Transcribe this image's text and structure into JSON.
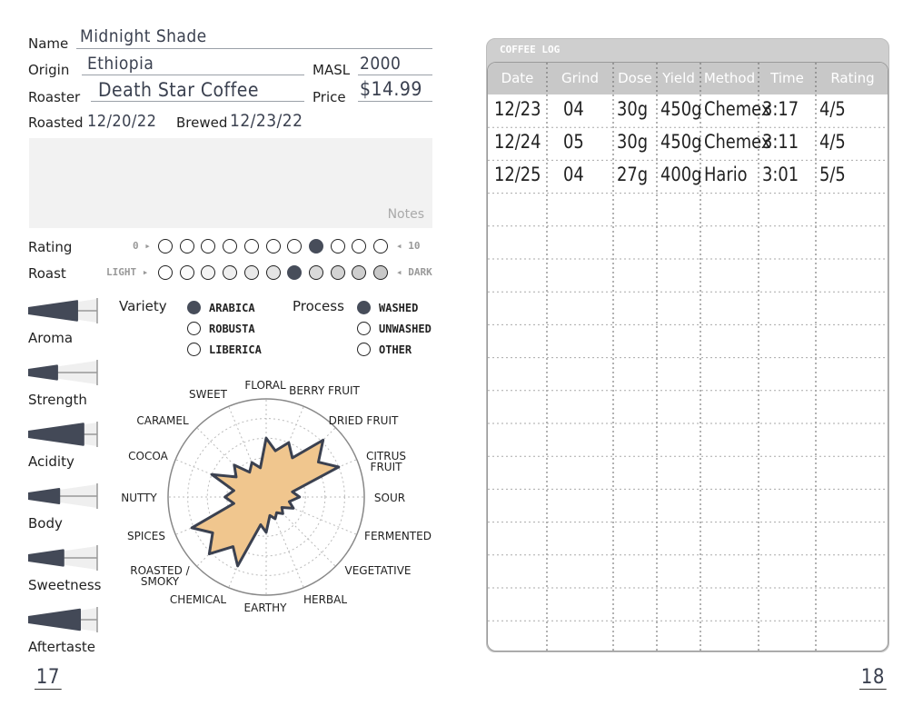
{
  "left_page": {
    "fields": {
      "name_label": "Name",
      "name_value": "Midnight Shade",
      "origin_label": "Origin",
      "origin_value": "Ethiopia",
      "masl_label": "MASL",
      "masl_value": "2000",
      "roaster_label": "Roaster",
      "roaster_value": "Death Star Coffee",
      "price_label": "Price",
      "price_value": "$14.99",
      "roasted_label": "Roasted",
      "roasted_value": "12/20/22",
      "brewed_label": "Brewed",
      "brewed_value": "12/23/22"
    },
    "notes": {
      "label": "Notes",
      "value": ""
    },
    "rating": {
      "label": "Rating",
      "min_label": "0 ▸",
      "max_label": "◂ 10",
      "value": 7,
      "scale_count": 11
    },
    "roast": {
      "label": "Roast",
      "min_label": "LIGHT ▸",
      "max_label": "◂ DARK",
      "value": 6,
      "scale_count": 11
    },
    "attributes": [
      {
        "label": "Aroma",
        "level": 0.71
      },
      {
        "label": "Strength",
        "level": 0.42
      },
      {
        "label": "Acidity",
        "level": 0.8
      },
      {
        "label": "Body",
        "level": 0.45
      },
      {
        "label": "Sweetness",
        "level": 0.51
      },
      {
        "label": "Aftertaste",
        "level": 0.75
      }
    ],
    "variety": {
      "label": "Variety",
      "options": [
        "ARABICA",
        "ROBUSTA",
        "LIBERICA"
      ],
      "selected": 0
    },
    "process": {
      "label": "Process",
      "options": [
        "WASHED",
        "UNWASHED",
        "OTHER"
      ],
      "selected": 0
    },
    "page_number": "17"
  },
  "chart_data": {
    "type": "radar",
    "categories": [
      "FLORAL",
      "BERRY FRUIT",
      "DRIED FRUIT",
      "CITRUS FRUIT",
      "SOUR",
      "FERMENTED",
      "VEGETATIVE",
      "HERBAL",
      "EARTHY",
      "CHEMICAL",
      "ROASTED / SMOKY",
      "SPICES",
      "NUTTY",
      "COCOA",
      "CARAMEL",
      "SWEET"
    ],
    "values": [
      3.0,
      3.0,
      4.1,
      4.0,
      1.7,
      1.5,
      1.2,
      1.2,
      1.8,
      3.8,
      4.1,
      4.1,
      2.1,
      3.0,
      2.3,
      1.9
    ],
    "rlim": [
      0,
      5
    ],
    "grid": true,
    "fill_color": "#f0c68e",
    "stroke_color": "#3b4150"
  },
  "right_page": {
    "title": "COFFEE LOG",
    "columns": [
      "Date",
      "Grind",
      "Dose",
      "Yield",
      "Method",
      "Time",
      "Rating"
    ],
    "rows": [
      [
        "12/23",
        "04",
        "30g",
        "450g",
        "Chemex",
        "3:17",
        "4/5"
      ],
      [
        "12/24",
        "05",
        "30g",
        "450g",
        "Chemex",
        "3:11",
        "4/5"
      ],
      [
        "12/25",
        "04",
        "27g",
        "400g",
        "Hario",
        "3:01",
        "5/5"
      ]
    ],
    "page_number": "18"
  }
}
